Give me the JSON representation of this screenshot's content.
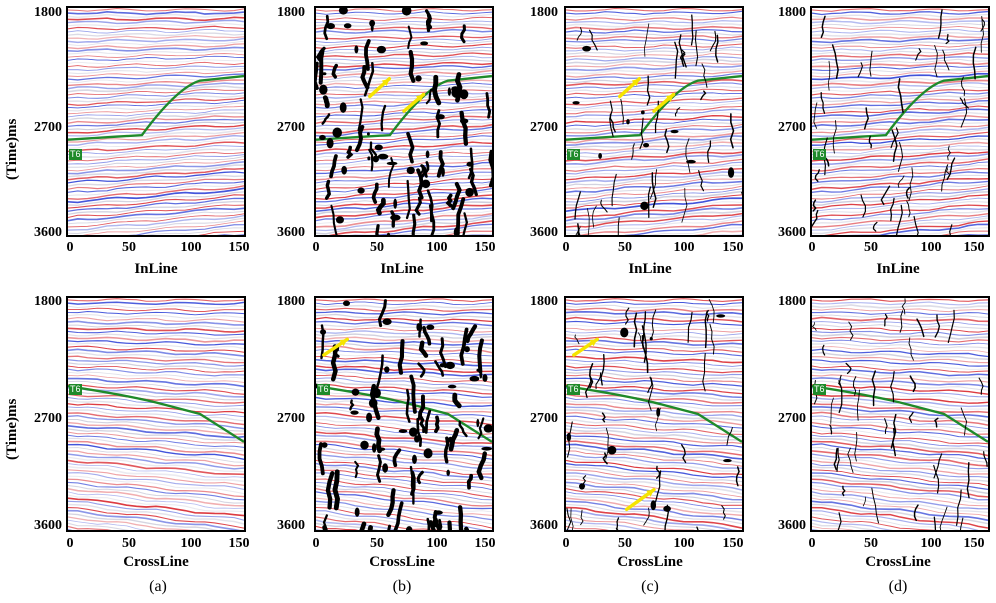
{
  "y_axis_label": "(Time)ms",
  "y_ticks": [
    "1800",
    "2700",
    "3600"
  ],
  "x_ticks": [
    "0",
    "50",
    "100",
    "150"
  ],
  "top_row_xlabel": "InLine",
  "bottom_row_xlabel": "CrossLine",
  "horizon_marker": "T6",
  "captions": [
    "(a)",
    "(b)",
    "(c)",
    "(d)"
  ],
  "colors": {
    "trace_red": "#d8232a",
    "trace_blue": "#2b3fd6",
    "horizon_green": "#1f8a2a",
    "fault_black": "#000000",
    "arrow_yellow": "#f5e400"
  },
  "panels": [
    {
      "id": "a-top",
      "attribute": "seismic",
      "has_arrows": false
    },
    {
      "id": "b-top",
      "attribute": "blob faults",
      "has_arrows": true
    },
    {
      "id": "c-top",
      "attribute": "thin faults with blobs",
      "has_arrows": true
    },
    {
      "id": "d-top",
      "attribute": "thin faults",
      "has_arrows": false
    },
    {
      "id": "a-bottom",
      "attribute": "seismic",
      "has_arrows": false
    },
    {
      "id": "b-bottom",
      "attribute": "blob faults",
      "has_arrows": true
    },
    {
      "id": "c-bottom",
      "attribute": "thin faults with blobs",
      "has_arrows": true
    },
    {
      "id": "d-bottom",
      "attribute": "thin faults",
      "has_arrows": false
    }
  ]
}
